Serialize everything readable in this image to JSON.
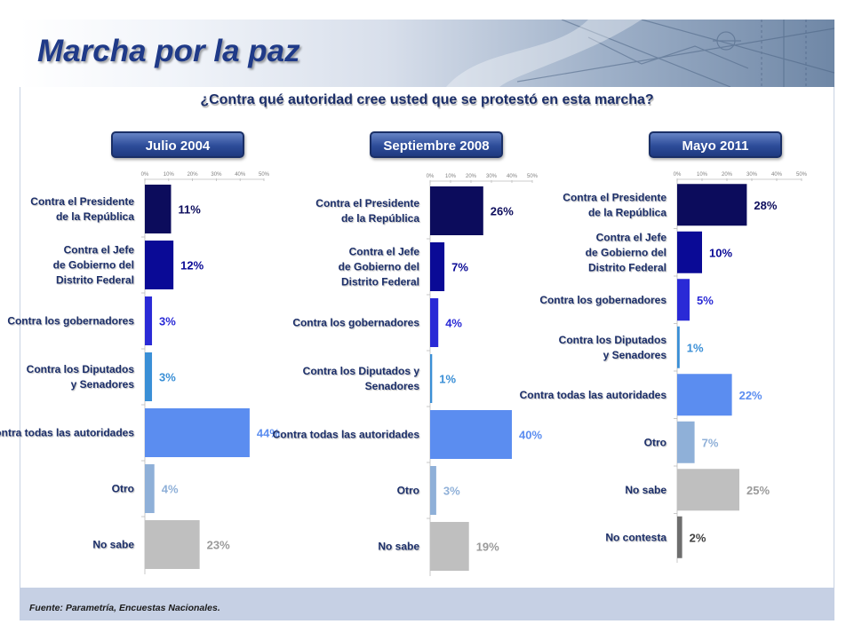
{
  "slide": {
    "title": "Marcha por la paz",
    "subtitle": "¿Contra qué autoridad cree usted que se protestó en esta marcha?",
    "source": "Fuente: Parametría, Encuestas Nacionales."
  },
  "colors": {
    "title": "#1f3a88",
    "pill": "#2d4c99",
    "footer_band": "#c6d0e4"
  },
  "chart_data": [
    {
      "type": "bar",
      "orientation": "horizontal",
      "title": "Julio 2004",
      "categories": [
        "Contra el Presidente de la República",
        "Contra el Jefe de Gobierno del Distrito Federal",
        "Contra los gobernadores",
        "Contra los Diputados y Senadores",
        "Contra todas las autoridades",
        "Otro",
        "No sabe"
      ],
      "values": [
        11,
        12,
        3,
        3,
        44,
        4,
        23
      ],
      "value_labels": [
        "11%",
        "12%",
        "3%",
        "3%",
        "44%",
        "4%",
        "23%"
      ],
      "colors": [
        "#0c0c5c",
        "#0a0a96",
        "#2a2ad6",
        "#3a8fd6",
        "#5b8df0",
        "#8fb0d8",
        "#bfbfbf"
      ],
      "label_colors": [
        "#0c0c5c",
        "#0a0a96",
        "#2a2ad6",
        "#3a8fd6",
        "#5b8df0",
        "#8fb0d8",
        "#9a9a9a"
      ],
      "tick_labels": [
        "0%",
        "10%",
        "20%",
        "30%",
        "40%",
        "50%"
      ],
      "xlim": [
        0,
        50
      ]
    },
    {
      "type": "bar",
      "orientation": "horizontal",
      "title": "Septiembre 2008",
      "categories": [
        "Contra el Presidente de la República",
        "Contra el Jefe de Gobierno del Distrito Federal",
        "Contra los gobernadores",
        "Contra los Diputados y Senadores",
        "Contra todas las autoridades",
        "Otro",
        "No sabe"
      ],
      "values": [
        26,
        7,
        4,
        1,
        40,
        3,
        19
      ],
      "value_labels": [
        "26%",
        "7%",
        "4%",
        "1%",
        "40%",
        "3%",
        "19%"
      ],
      "colors": [
        "#0c0c5c",
        "#0a0a96",
        "#2a2ad6",
        "#3a8fd6",
        "#5b8df0",
        "#8fb0d8",
        "#bfbfbf"
      ],
      "label_colors": [
        "#0c0c5c",
        "#0a0a96",
        "#2a2ad6",
        "#3a8fd6",
        "#5b8df0",
        "#8fb0d8",
        "#9a9a9a"
      ],
      "tick_labels": [
        "0%",
        "10%",
        "20%",
        "30%",
        "40%",
        "50%"
      ],
      "xlim": [
        0,
        50
      ]
    },
    {
      "type": "bar",
      "orientation": "horizontal",
      "title": "Mayo 2011",
      "categories": [
        "Contra el Presidente de la República",
        "Contra el Jefe de Gobierno del Distrito Federal",
        "Contra los gobernadores",
        "Contra los Diputados y Senadores",
        "Contra todas las autoridades",
        "Otro",
        "No sabe",
        "No contesta"
      ],
      "values": [
        28,
        10,
        5,
        1,
        22,
        7,
        25,
        2
      ],
      "value_labels": [
        "28%",
        "10%",
        "5%",
        "1%",
        "22%",
        "7%",
        "25%",
        "2%"
      ],
      "colors": [
        "#0c0c5c",
        "#0a0a96",
        "#2a2ad6",
        "#3a8fd6",
        "#5b8df0",
        "#8fb0d8",
        "#bfbfbf",
        "#6e6e6e"
      ],
      "label_colors": [
        "#0c0c5c",
        "#0a0a96",
        "#2a2ad6",
        "#3a8fd6",
        "#5b8df0",
        "#8fb0d8",
        "#9a9a9a",
        "#404040"
      ],
      "tick_labels": [
        "0%",
        "10%",
        "20%",
        "30%",
        "40%",
        "50%"
      ],
      "xlim": [
        0,
        50
      ]
    }
  ]
}
